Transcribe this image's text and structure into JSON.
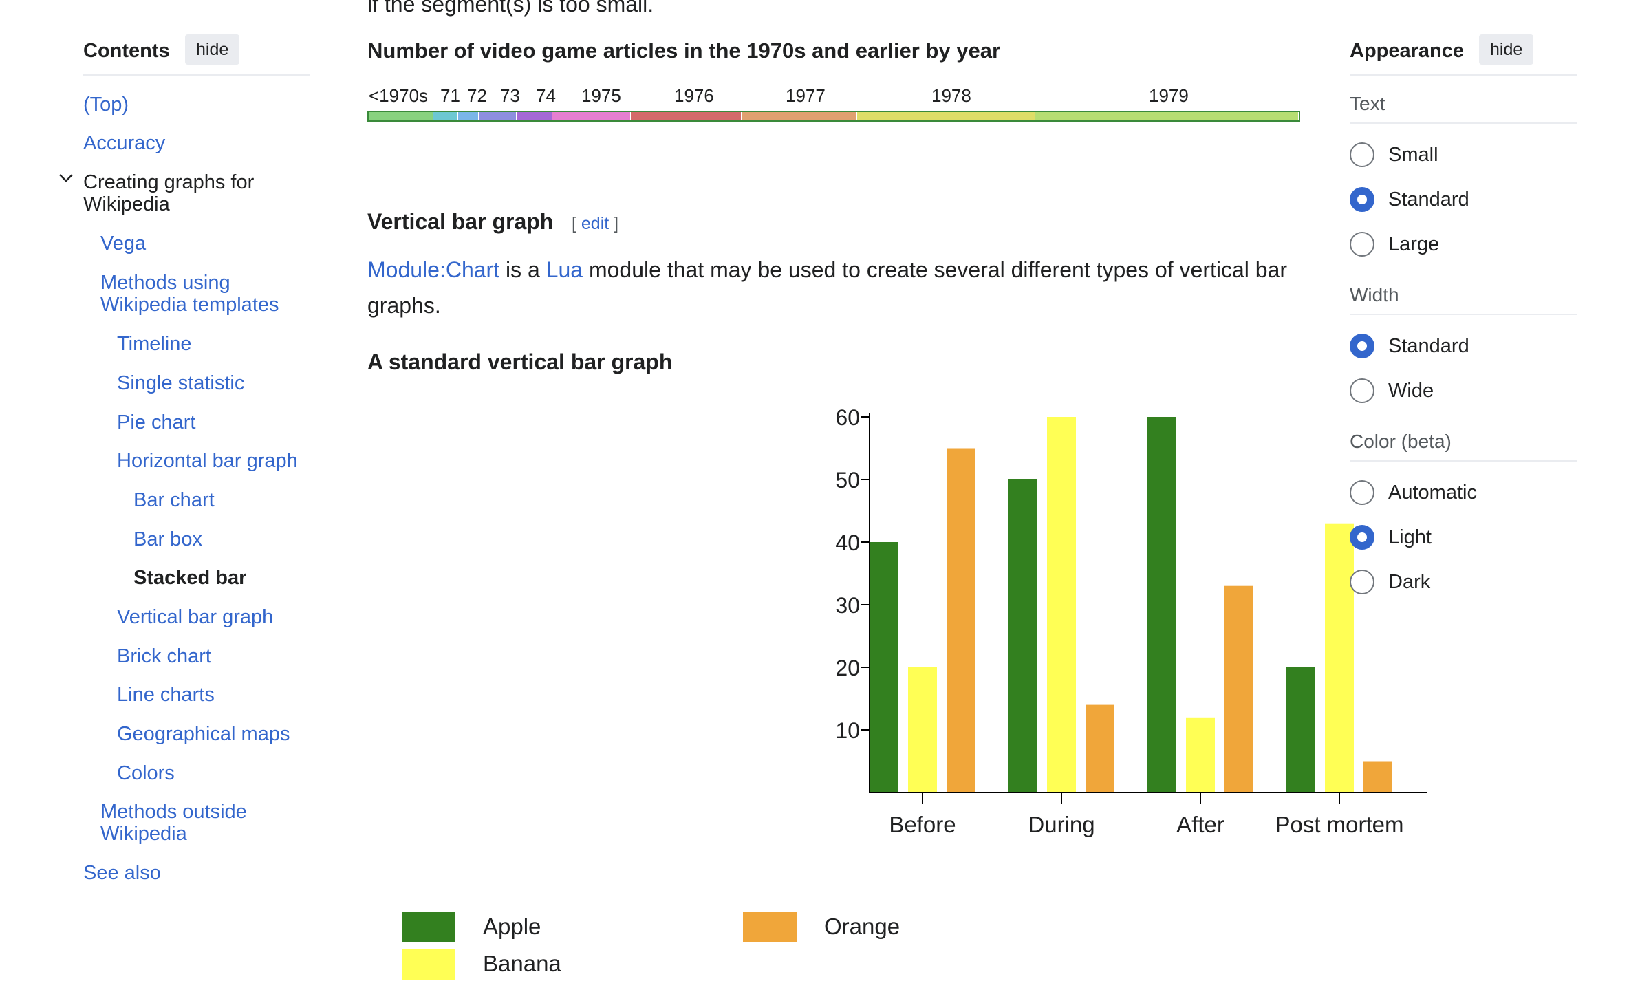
{
  "toc": {
    "title": "Contents",
    "hide_label": "hide",
    "items": [
      {
        "label": "(Top)"
      },
      {
        "label": "Accuracy"
      },
      {
        "label": "Creating graphs for",
        "label2": "Wikipedia"
      },
      {
        "label": "Vega"
      },
      {
        "label": "Methods using",
        "label2": "Wikipedia templates"
      },
      {
        "label": "Timeline"
      },
      {
        "label": "Single statistic"
      },
      {
        "label": "Pie chart"
      },
      {
        "label": "Horizontal bar graph"
      },
      {
        "label": "Bar chart"
      },
      {
        "label": "Bar box"
      },
      {
        "label": "Stacked bar"
      },
      {
        "label": "Vertical bar graph"
      },
      {
        "label": "Brick chart"
      },
      {
        "label": "Line charts"
      },
      {
        "label": "Geographical maps"
      },
      {
        "label": "Colors"
      },
      {
        "label": "Methods outside",
        "label2": "Wikipedia"
      },
      {
        "label": "See also"
      }
    ]
  },
  "appearance": {
    "title": "Appearance",
    "hide_label": "hide",
    "text_section": "Text",
    "text_options": [
      "Small",
      "Standard",
      "Large"
    ],
    "text_selected": "Standard",
    "width_section": "Width",
    "width_options": [
      "Standard",
      "Wide"
    ],
    "width_selected": "Standard",
    "color_section": "Color (beta)",
    "color_options": [
      "Automatic",
      "Light",
      "Dark"
    ],
    "color_selected": "Light"
  },
  "main": {
    "clipped_text": "if the segment(s) is too small.",
    "timeline": {
      "title": "Number of video game articles in the 1970s and earlier by year",
      "labels": [
        "<1970s",
        "71",
        "72",
        "73",
        "74",
        "1975",
        "1976",
        "1977",
        "1978",
        "1979"
      ],
      "segment_colors": [
        "#88d27f",
        "#6dc8d2",
        "#7ab6e8",
        "#8d8fdf",
        "#a468d6",
        "#e67fd0",
        "#d46a6a",
        "#e0a070",
        "#dede68",
        "#b6de72"
      ]
    },
    "section_heading": "Vertical bar graph",
    "edit_label": "[ edit ]",
    "paragraph": {
      "link1": "Module:Chart",
      "text1": " is a ",
      "link2": "Lua",
      "text2": " module that may be used to create several different types of vertical bar graphs."
    },
    "subheading": "A standard vertical bar graph"
  },
  "chart_data": {
    "type": "bar",
    "categories": [
      "Before",
      "During",
      "After",
      "Post mortem"
    ],
    "series": [
      {
        "name": "Apple",
        "color": "#33801f",
        "values": [
          40,
          50,
          60,
          20
        ]
      },
      {
        "name": "Banana",
        "color": "#ffff55",
        "values": [
          20,
          60,
          12,
          43
        ]
      },
      {
        "name": "Orange",
        "color": "#f0a63a",
        "values": [
          55,
          14,
          33,
          5
        ]
      }
    ],
    "ylim": [
      0,
      60
    ],
    "yticks": [
      10,
      20,
      30,
      40,
      50,
      60
    ],
    "legend": "bottom"
  }
}
